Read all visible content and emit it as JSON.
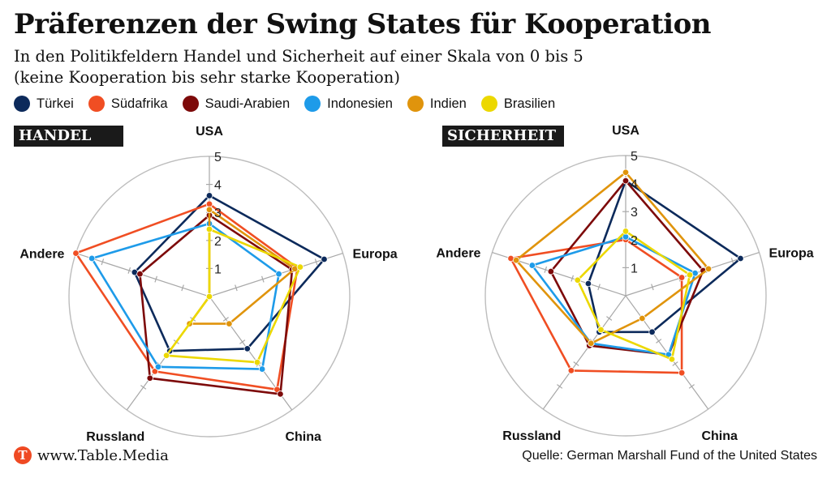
{
  "title": "Präferenzen der Swing States für Kooperation",
  "subtitle_line1": "In den Politikfeldern Handel und Sicherheit auf einer Skala von 0 bis 5",
  "subtitle_line2": "(keine Kooperation bis sehr starke Kooperation)",
  "legend": [
    {
      "name": "Türkei",
      "color": "#0c2a5b"
    },
    {
      "name": "Südafrika",
      "color": "#f04e23"
    },
    {
      "name": "Saudi-Arabien",
      "color": "#7d0a0a"
    },
    {
      "name": "Indonesien",
      "color": "#1e9be9"
    },
    {
      "name": "Indien",
      "color": "#e0940c"
    },
    {
      "name": "Brasilien",
      "color": "#ecd800"
    }
  ],
  "footer": {
    "logo": "T",
    "brand": "www.Table.Media",
    "source": "Quelle: German Marshall Fund of the United States"
  },
  "chart_data": [
    {
      "type": "radar",
      "title": "HANDEL",
      "axes": [
        "USA",
        "Europa",
        "China",
        "Russland",
        "Andere"
      ],
      "scale_labels": [
        "1",
        "2",
        "3",
        "4",
        "5"
      ],
      "range": [
        0,
        5
      ],
      "series": [
        {
          "name": "Türkei",
          "color": "#0c2a5b",
          "values": [
            3.6,
            4.3,
            2.3,
            2.4,
            2.8
          ]
        },
        {
          "name": "Südafrika",
          "color": "#f04e23",
          "values": [
            3.3,
            3.3,
            4.1,
            3.3,
            5.0
          ]
        },
        {
          "name": "Saudi-Arabien",
          "color": "#7d0a0a",
          "values": [
            2.9,
            3.1,
            4.3,
            3.6,
            2.6
          ]
        },
        {
          "name": "Indonesien",
          "color": "#1e9be9",
          "values": [
            2.6,
            2.6,
            3.2,
            3.1,
            4.4
          ]
        },
        {
          "name": "Indien",
          "color": "#e0940c",
          "values": [
            3.1,
            3.2,
            1.2,
            1.2,
            0.0
          ]
        },
        {
          "name": "Brasilien",
          "color": "#ecd800",
          "values": [
            2.4,
            3.4,
            2.9,
            2.6,
            0.0
          ]
        }
      ]
    },
    {
      "type": "radar",
      "title": "SICHERHEIT",
      "axes": [
        "USA",
        "Europa",
        "China",
        "Russland",
        "Andere"
      ],
      "scale_labels": [
        "1",
        "2",
        "3",
        "4",
        "5"
      ],
      "range": [
        0,
        5
      ],
      "series": [
        {
          "name": "Türkei",
          "color": "#0c2a5b",
          "values": [
            4.1,
            4.3,
            1.6,
            1.6,
            1.4
          ]
        },
        {
          "name": "Südafrika",
          "color": "#f04e23",
          "values": [
            2.0,
            2.1,
            3.4,
            3.3,
            4.3
          ]
        },
        {
          "name": "Saudi-Arabien",
          "color": "#7d0a0a",
          "values": [
            4.1,
            2.9,
            2.6,
            2.2,
            2.8
          ]
        },
        {
          "name": "Indonesien",
          "color": "#1e9be9",
          "values": [
            2.1,
            2.6,
            2.6,
            2.1,
            3.5
          ]
        },
        {
          "name": "Indien",
          "color": "#e0940c",
          "values": [
            4.4,
            3.1,
            1.0,
            2.1,
            4.1
          ]
        },
        {
          "name": "Brasilien",
          "color": "#ecd800",
          "values": [
            2.3,
            2.4,
            2.8,
            1.5,
            1.8
          ]
        }
      ]
    }
  ]
}
